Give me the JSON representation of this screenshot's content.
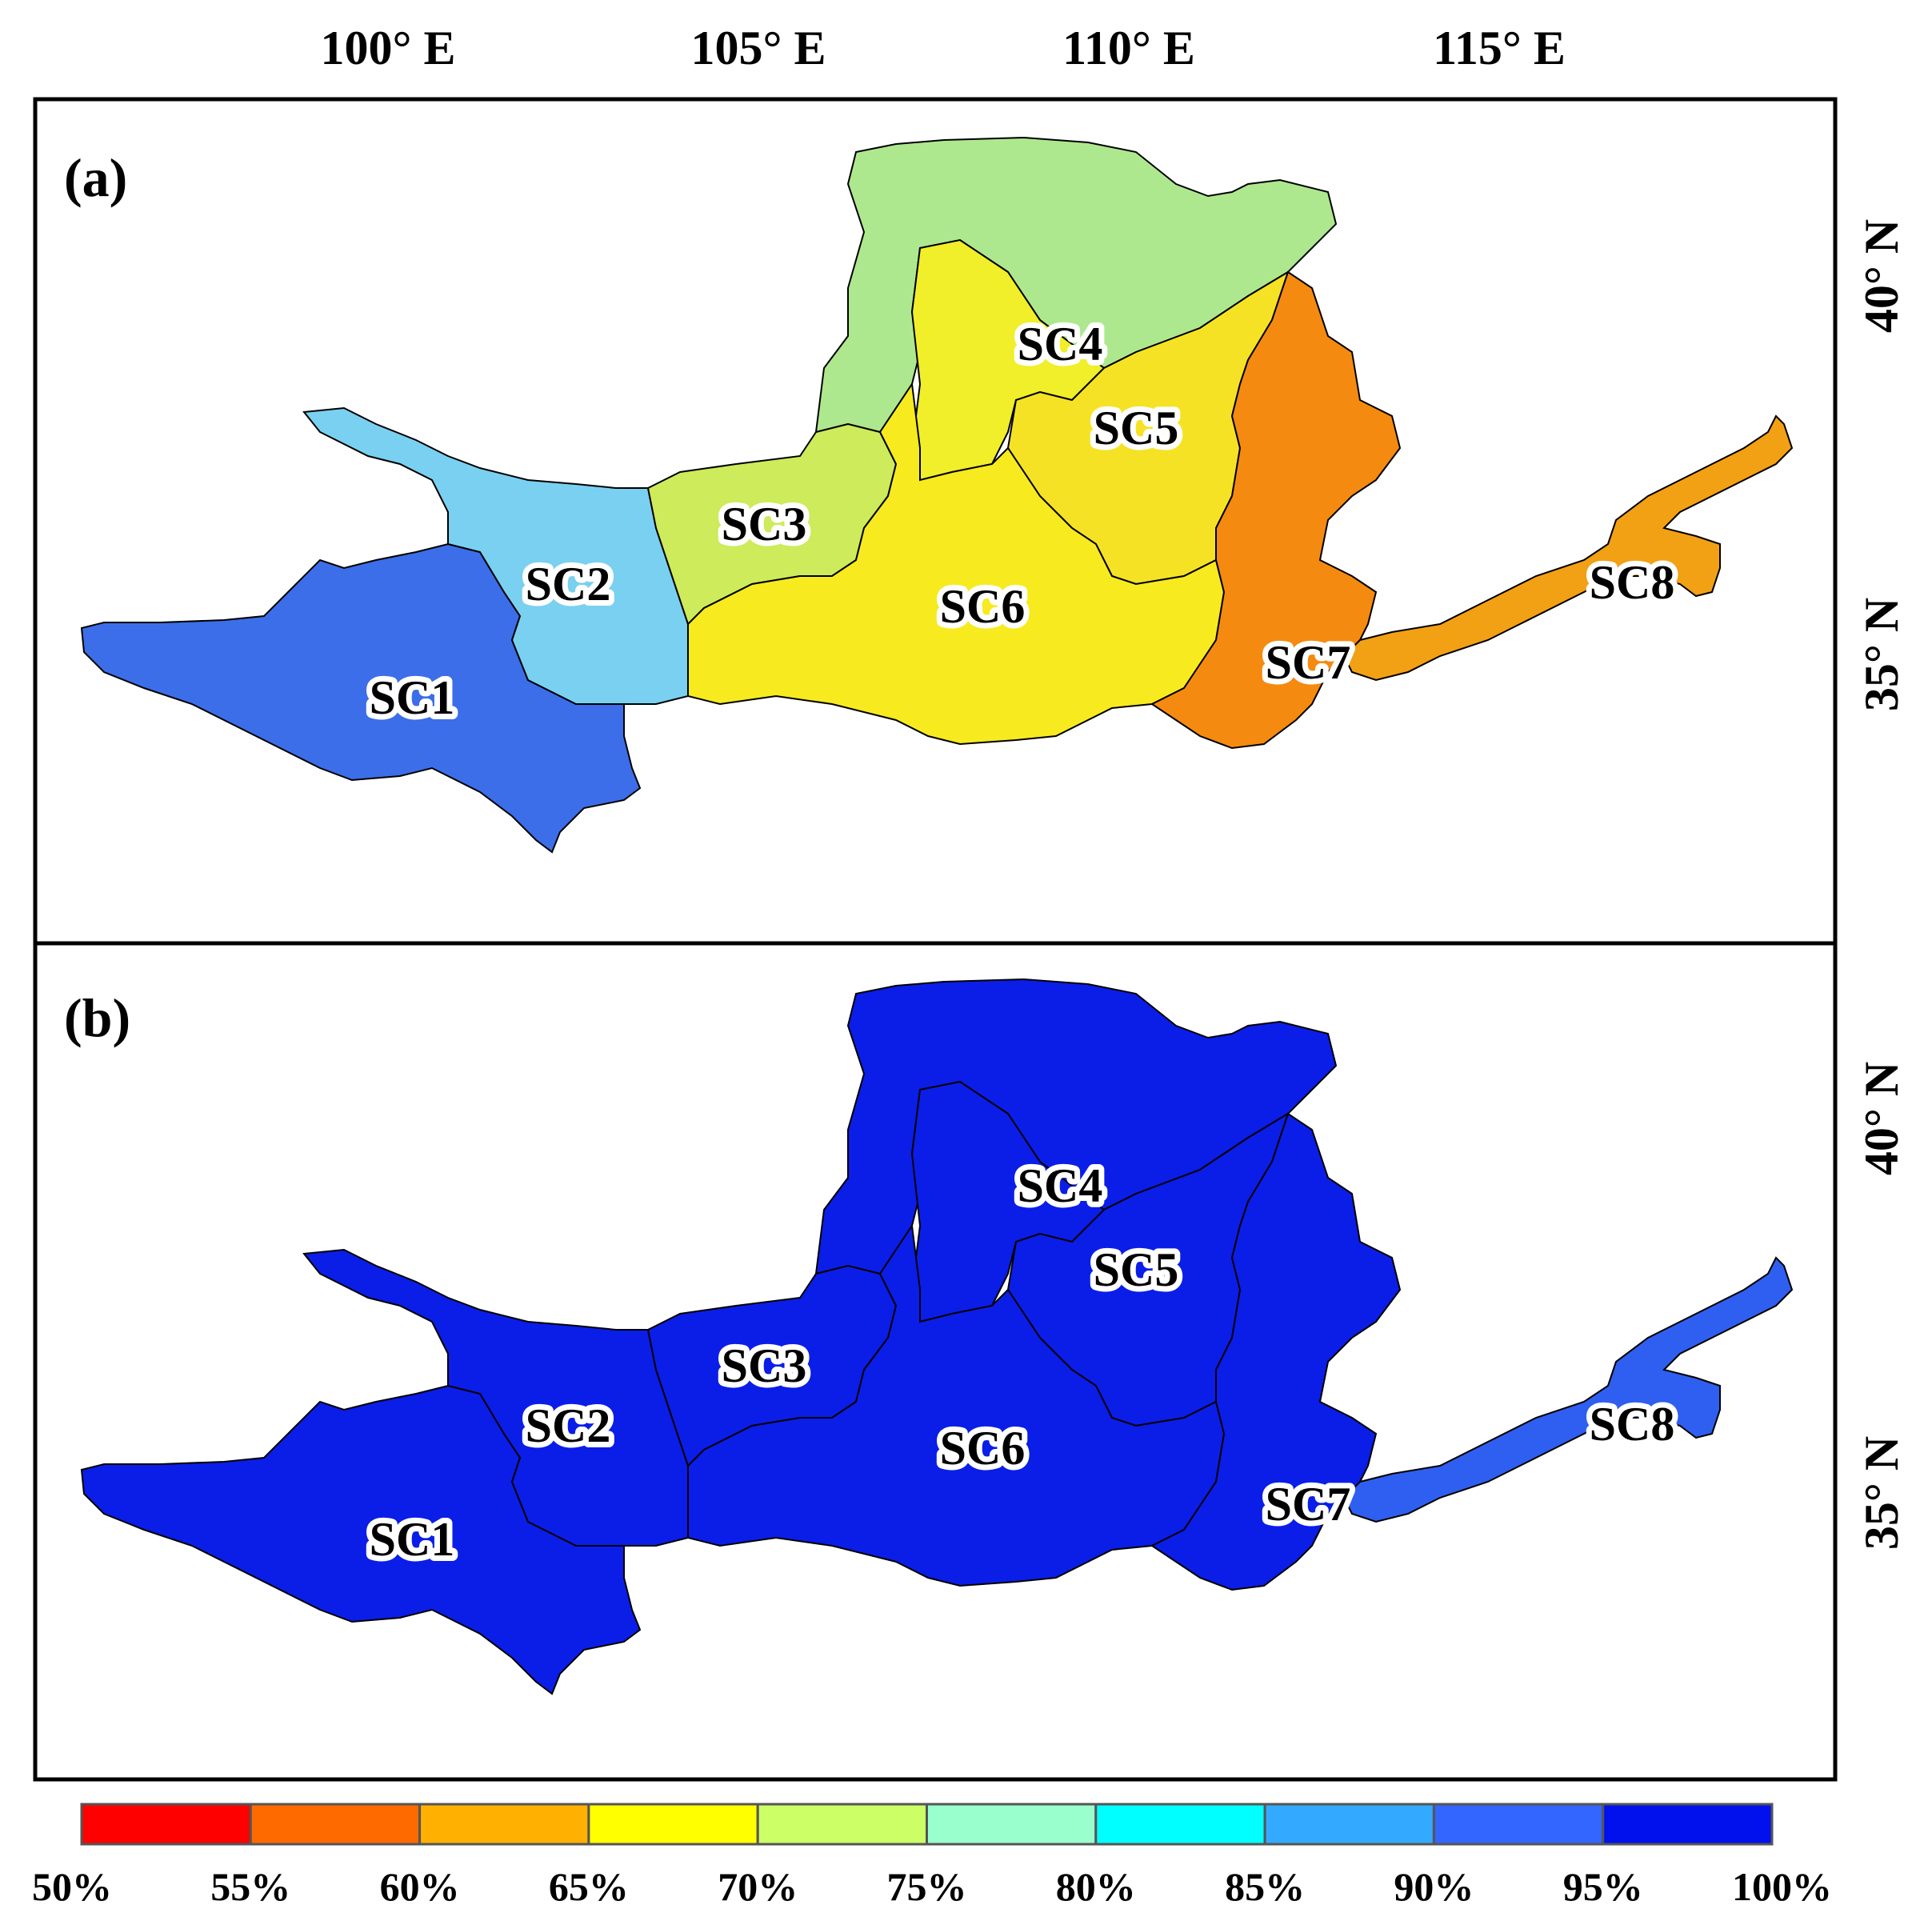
{
  "axes": {
    "lon_ticks": [
      "100° E",
      "105° E",
      "110° E",
      "115° E"
    ],
    "lat_ticks": [
      "40° N",
      "35° N"
    ]
  },
  "panels": [
    {
      "label": "(a)",
      "regions": [
        {
          "name": "SC1",
          "color": "#3b6ee8"
        },
        {
          "name": "SC2",
          "color": "#7ad0f0"
        },
        {
          "name": "SC3",
          "color": "#cdeb5a"
        },
        {
          "name": "SC4",
          "color": "#f1ee2a"
        },
        {
          "name": "SC5",
          "color": "#f6e224"
        },
        {
          "name": "SC6",
          "color": "#f7ea1f"
        },
        {
          "name": "SC7",
          "color": "#f58a10"
        },
        {
          "name": "SC8",
          "color": "#f2a014"
        }
      ],
      "extra_fills": {
        "north_loop": "#aee88e",
        "northeast": "#f5b514"
      }
    },
    {
      "label": "(b)",
      "regions": [
        {
          "name": "SC1",
          "color": "#0a1ee8"
        },
        {
          "name": "SC2",
          "color": "#0a1ee8"
        },
        {
          "name": "SC3",
          "color": "#0a1ee8"
        },
        {
          "name": "SC4",
          "color": "#0a1ee8"
        },
        {
          "name": "SC5",
          "color": "#0a1ee8"
        },
        {
          "name": "SC6",
          "color": "#0a1ee8"
        },
        {
          "name": "SC7",
          "color": "#0a1ee8"
        },
        {
          "name": "SC8",
          "color": "#2e5ff0"
        }
      ],
      "extra_fills": {
        "north_loop": "#0a1ee8",
        "northeast": "#0a1ee8"
      }
    }
  ],
  "colorbar": {
    "colors": [
      "#ff0000",
      "#ff6a00",
      "#ffb000",
      "#ffff00",
      "#ccff66",
      "#99ffcc",
      "#00ffff",
      "#33aaff",
      "#3366ff",
      "#0011ee"
    ],
    "labels": [
      "50%",
      "55%",
      "60%",
      "65%",
      "70%",
      "75%",
      "80%",
      "85%",
      "90%",
      "95%",
      "100%"
    ]
  }
}
